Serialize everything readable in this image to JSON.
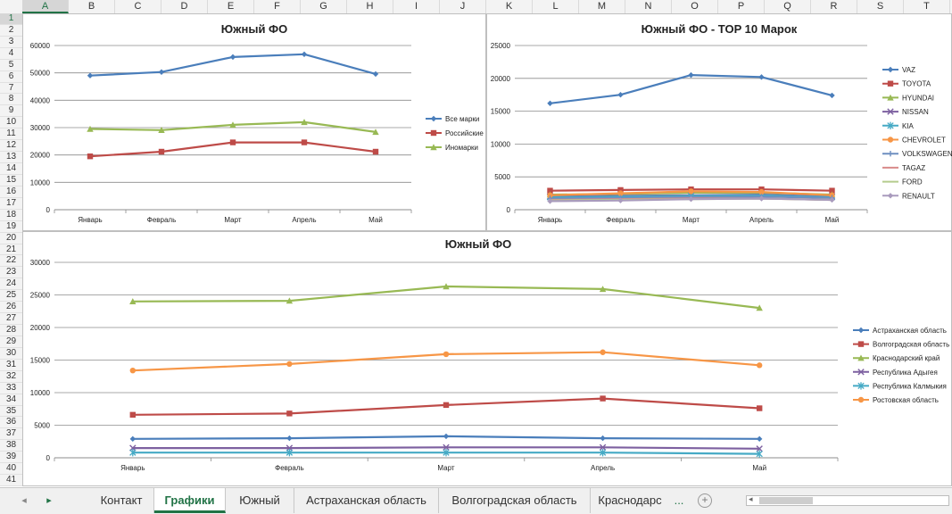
{
  "sheet": {
    "columns": [
      "A",
      "B",
      "C",
      "D",
      "E",
      "F",
      "G",
      "H",
      "I",
      "J",
      "K",
      "L",
      "M",
      "N",
      "O",
      "P",
      "Q",
      "R",
      "S",
      "T"
    ],
    "active_column": "A",
    "rows": [
      "1",
      "2",
      "3",
      "4",
      "5",
      "6",
      "7",
      "8",
      "9",
      "10",
      "11",
      "12",
      "13",
      "14",
      "15",
      "16",
      "17",
      "18",
      "19",
      "20",
      "21",
      "22",
      "23",
      "24",
      "25",
      "26",
      "27",
      "28",
      "29",
      "30",
      "31",
      "32",
      "33",
      "34",
      "35",
      "36",
      "37",
      "38",
      "39",
      "40",
      "41"
    ],
    "active_row": "1"
  },
  "tabs": {
    "items": [
      "Контакт",
      "Графики",
      "Южный",
      "Астраханская область",
      "Волгоградская область",
      "Краснодарс"
    ],
    "active": "Графики",
    "overflow": "...",
    "add": "+",
    "prev": "◂",
    "next": "▸"
  },
  "chart_data": [
    {
      "type": "line",
      "title": "Южный ФО",
      "categories": [
        "Январь",
        "Февраль",
        "Март",
        "Апрель",
        "Май"
      ],
      "ylim": [
        0,
        60000
      ],
      "yticks": [
        "0",
        "10000",
        "20000",
        "30000",
        "40000",
        "50000",
        "60000"
      ],
      "grid": true,
      "legend": "right",
      "series": [
        {
          "name": "Все марки",
          "values": [
            49000,
            50300,
            55800,
            56800,
            49600
          ],
          "color": "#4a7ebb",
          "marker": "diamond"
        },
        {
          "name": "Российские",
          "values": [
            19500,
            21200,
            24600,
            24600,
            21200
          ],
          "color": "#be4b48",
          "marker": "square"
        },
        {
          "name": "Иномарки",
          "values": [
            29500,
            29100,
            31000,
            32000,
            28400
          ],
          "color": "#98b954",
          "marker": "triangle"
        }
      ]
    },
    {
      "type": "line",
      "title": "Южный ФО - TOP 10 Марок",
      "categories": [
        "Январь",
        "Февраль",
        "Март",
        "Апрель",
        "Май"
      ],
      "ylim": [
        0,
        25000
      ],
      "yticks": [
        "0",
        "5000",
        "10000",
        "15000",
        "20000",
        "25000"
      ],
      "grid": true,
      "legend": "right",
      "series": [
        {
          "name": "VAZ",
          "values": [
            16200,
            17500,
            20500,
            20200,
            17400
          ],
          "color": "#4a7ebb",
          "marker": "diamond"
        },
        {
          "name": "TOYOTA",
          "values": [
            2900,
            3000,
            3100,
            3100,
            2900
          ],
          "color": "#be4b48",
          "marker": "square"
        },
        {
          "name": "HYUNDAI",
          "values": [
            2300,
            2400,
            2600,
            2600,
            2300
          ],
          "color": "#98b954",
          "marker": "triangle"
        },
        {
          "name": "NISSAN",
          "values": [
            2000,
            2100,
            2200,
            2300,
            2000
          ],
          "color": "#7d60a0",
          "marker": "x"
        },
        {
          "name": "KIA",
          "values": [
            1900,
            2000,
            2100,
            2200,
            1900
          ],
          "color": "#46aac5",
          "marker": "star"
        },
        {
          "name": "CHEVROLET",
          "values": [
            2200,
            2500,
            2800,
            2700,
            2200
          ],
          "color": "#f79646",
          "marker": "circle"
        },
        {
          "name": "VOLKSWAGEN",
          "values": [
            1700,
            1800,
            1900,
            2000,
            1800
          ],
          "color": "#6e8fc0",
          "marker": "plus"
        },
        {
          "name": "TAGAZ",
          "values": [
            1500,
            1600,
            1700,
            1700,
            1500
          ],
          "color": "#d88a89",
          "marker": "none"
        },
        {
          "name": "FORD",
          "values": [
            1400,
            1500,
            1600,
            1700,
            1500
          ],
          "color": "#b5cc8e",
          "marker": "none"
        },
        {
          "name": "RENAULT",
          "values": [
            1300,
            1400,
            1600,
            1700,
            1500
          ],
          "color": "#a99bbd",
          "marker": "diamond"
        }
      ]
    },
    {
      "type": "line",
      "title": "Южный ФО",
      "categories": [
        "Январь",
        "Февраль",
        "Март",
        "Апрель",
        "Май"
      ],
      "ylim": [
        0,
        30000
      ],
      "yticks": [
        "0",
        "5000",
        "10000",
        "15000",
        "20000",
        "25000",
        "30000"
      ],
      "grid": true,
      "legend": "right",
      "series": [
        {
          "name": "Астраханская область",
          "values": [
            2900,
            3000,
            3300,
            3000,
            2900
          ],
          "color": "#4a7ebb",
          "marker": "diamond"
        },
        {
          "name": "Волгоградская область",
          "values": [
            6600,
            6800,
            8100,
            9100,
            7600
          ],
          "color": "#be4b48",
          "marker": "square"
        },
        {
          "name": "Краснодарский край",
          "values": [
            24000,
            24100,
            26300,
            25900,
            23000
          ],
          "color": "#98b954",
          "marker": "triangle"
        },
        {
          "name": "Республика Адыгея",
          "values": [
            1500,
            1500,
            1600,
            1600,
            1400
          ],
          "color": "#7d60a0",
          "marker": "x"
        },
        {
          "name": "Республика Калмыкия",
          "values": [
            800,
            800,
            800,
            800,
            600
          ],
          "color": "#46aac5",
          "marker": "star"
        },
        {
          "name": "Ростовская область",
          "values": [
            13400,
            14400,
            15900,
            16200,
            14200
          ],
          "color": "#f79646",
          "marker": "circle"
        }
      ]
    }
  ]
}
